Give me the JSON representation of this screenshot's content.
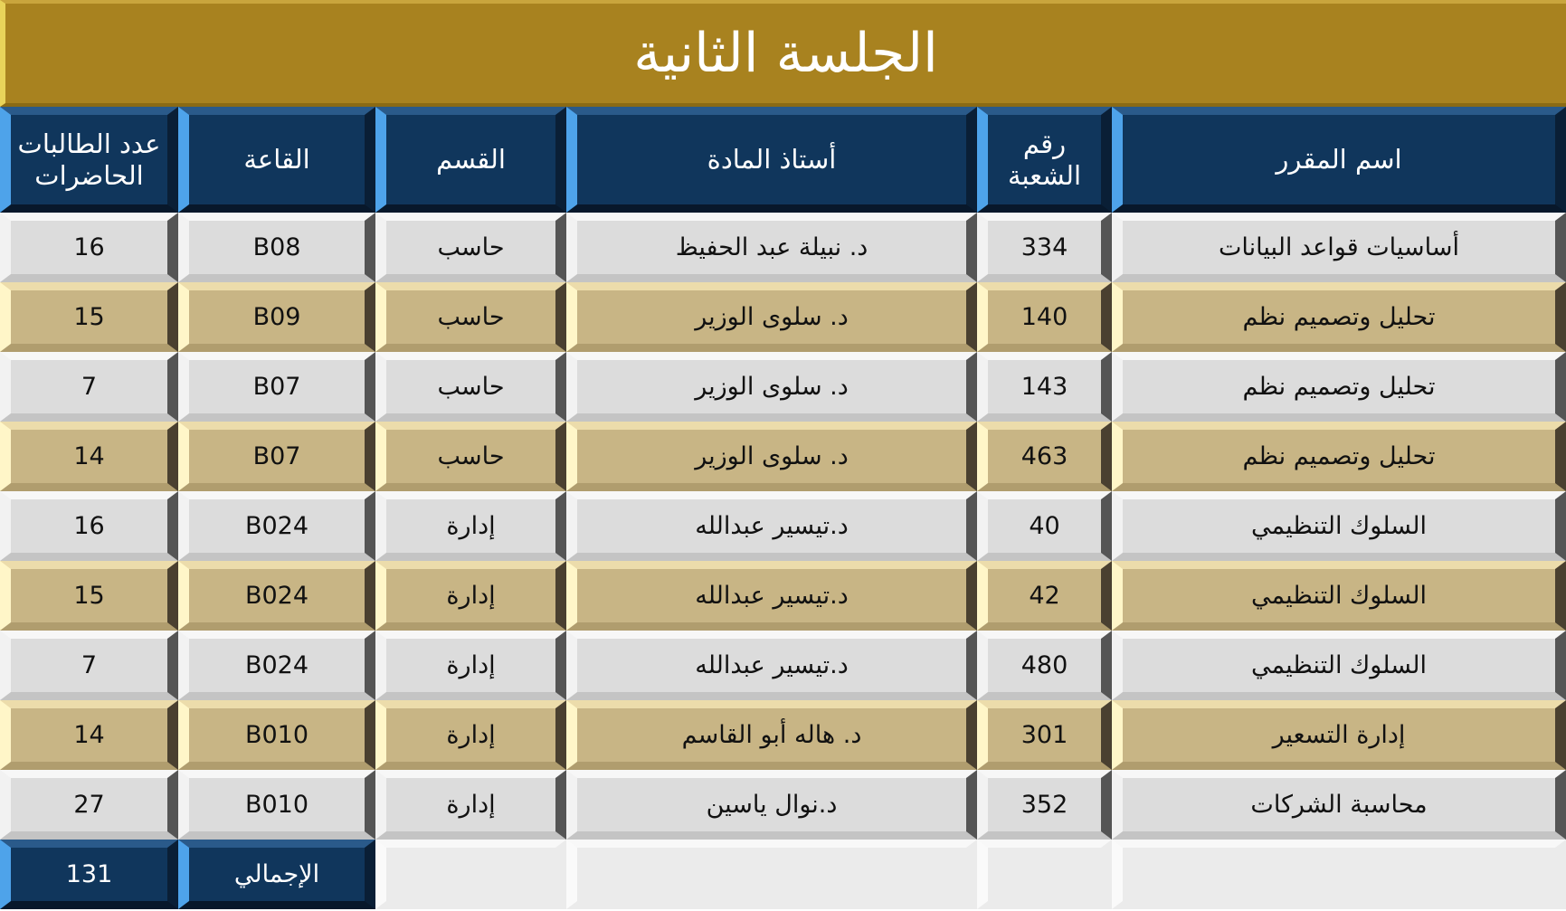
{
  "title": "الجلسة الثانية",
  "headers": [
    "اسم المقرر",
    "رقم الشعبة",
    "أستاذ المادة",
    "القسم",
    "القاعة",
    "عدد الطالبات الحاضرات"
  ],
  "rows": [
    [
      "أساسيات قواعد البيانات",
      "334",
      "د. نبيلة عبد الحفيظ",
      "حاسب",
      "B08",
      "16"
    ],
    [
      "تحليل وتصميم نظم",
      "140",
      "د. سلوى الوزير",
      "حاسب",
      "B09",
      "15"
    ],
    [
      "تحليل وتصميم نظم",
      "143",
      "د. سلوى الوزير",
      "حاسب",
      "B07",
      "7"
    ],
    [
      "تحليل وتصميم نظم",
      "463",
      "د. سلوى الوزير",
      "حاسب",
      "B07",
      "14"
    ],
    [
      "السلوك التنظيمي",
      "40",
      "د.تيسير عبدالله",
      "إدارة",
      "B024",
      "16"
    ],
    [
      "السلوك التنظيمي",
      "42",
      "د.تيسير عبدالله",
      "إدارة",
      "B024",
      "15"
    ],
    [
      "السلوك التنظيمي",
      "480",
      "د.تيسير عبدالله",
      "إدارة",
      "B024",
      "7"
    ],
    [
      "إدارة التسعير",
      "301",
      "د. هاله أبو القاسم",
      "إدارة",
      "B010",
      "14"
    ],
    [
      "محاسبة الشركات",
      "352",
      "د.نوال ياسين",
      "إدارة",
      "B010",
      "27"
    ]
  ],
  "total": {
    "label": "الإجمالي",
    "value": "131"
  },
  "colors": {
    "title": "#a8821f",
    "header": "#10365c",
    "row_gray": "#dcdcdc",
    "row_tan": "#c8b585"
  }
}
